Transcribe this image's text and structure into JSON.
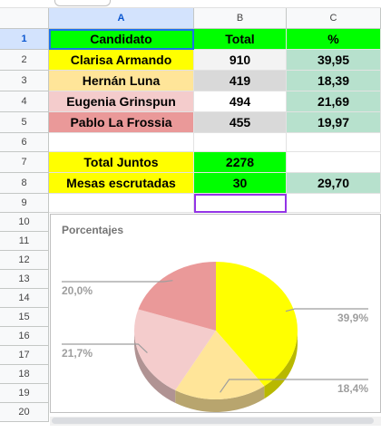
{
  "columns": [
    "A",
    "B",
    "C"
  ],
  "rows": [
    "1",
    "2",
    "3",
    "4",
    "5",
    "6",
    "7",
    "8",
    "9",
    "10",
    "11",
    "12",
    "13",
    "14",
    "15",
    "16",
    "17",
    "18",
    "19",
    "20"
  ],
  "table": {
    "header": {
      "candidate": "Candidato",
      "total": "Total",
      "pct": "%"
    },
    "data": [
      {
        "name": "Clarisa Armando",
        "total": "910",
        "pct": "39,95",
        "color": "#ffff00"
      },
      {
        "name": "Hernán Luna",
        "total": "419",
        "pct": "18,39",
        "color": "#ffe599"
      },
      {
        "name": "Eugenia Grinspun",
        "total": "494",
        "pct": "21,69",
        "color": "#f4cccc"
      },
      {
        "name": "Pablo La Frossia",
        "total": "455",
        "pct": "19,97",
        "color": "#ea9999"
      }
    ],
    "total_label": "Total Juntos",
    "total_value": "2278",
    "mesas_label": "Mesas escrutadas",
    "mesas_value": "30",
    "mesas_pct": "29,70"
  },
  "colors": {
    "header_green": "#00ff00",
    "pct_green": "#b7e1cd",
    "total_gray": "#d9d9d9",
    "total_bg_yellow": "#ffff00",
    "selection_blue": "#1a73e8"
  },
  "chart_data": {
    "type": "pie",
    "title": "Porcentajes",
    "categories": [
      "Clarisa Armando",
      "Hernán Luna",
      "Eugenia Grinspun",
      "Pablo La Frossia"
    ],
    "values": [
      39.9,
      18.4,
      21.7,
      20.0
    ],
    "labels": [
      "39,9%",
      "18,4%",
      "21,7%",
      "20,0%"
    ],
    "colors": [
      "#ffff00",
      "#ffe599",
      "#f4cccc",
      "#ea9999"
    ],
    "style": "3d"
  }
}
